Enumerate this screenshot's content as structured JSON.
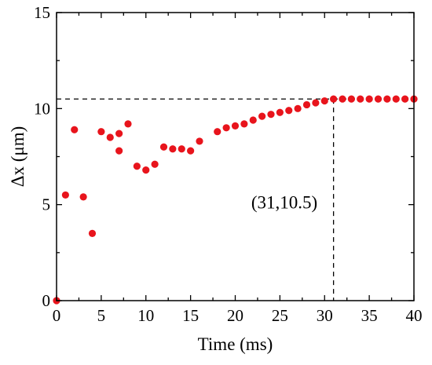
{
  "chart_data": {
    "type": "scatter",
    "xlabel": "Time (ms)",
    "ylabel": "Δx (μm)",
    "xlim": [
      0,
      40
    ],
    "ylim": [
      0,
      15
    ],
    "xticks": [
      0,
      5,
      10,
      15,
      20,
      25,
      30,
      35,
      40
    ],
    "yticks": [
      0,
      5,
      10,
      15
    ],
    "marker_color": "#e8141c",
    "grid": false,
    "series": [
      {
        "points": [
          [
            0,
            0.0
          ],
          [
            1,
            5.5
          ],
          [
            2,
            8.9
          ],
          [
            3,
            5.4
          ],
          [
            4,
            3.5
          ],
          [
            5,
            8.8
          ],
          [
            6,
            8.5
          ],
          [
            7,
            8.7
          ],
          [
            7,
            7.8
          ],
          [
            8,
            9.2
          ],
          [
            9,
            7.0
          ],
          [
            10,
            6.8
          ],
          [
            11,
            7.1
          ],
          [
            12,
            8.0
          ],
          [
            13,
            7.9
          ],
          [
            14,
            7.9
          ],
          [
            15,
            7.8
          ],
          [
            16,
            8.3
          ],
          [
            18,
            8.8
          ],
          [
            19,
            9.0
          ],
          [
            20,
            9.1
          ],
          [
            21,
            9.2
          ],
          [
            22,
            9.4
          ],
          [
            23,
            9.6
          ],
          [
            24,
            9.7
          ],
          [
            25,
            9.8
          ],
          [
            26,
            9.9
          ],
          [
            27,
            10.0
          ],
          [
            28,
            10.2
          ],
          [
            29,
            10.3
          ],
          [
            30,
            10.4
          ],
          [
            31,
            10.5
          ],
          [
            32,
            10.5
          ],
          [
            33,
            10.5
          ],
          [
            34,
            10.5
          ],
          [
            35,
            10.5
          ],
          [
            36,
            10.5
          ],
          [
            37,
            10.5
          ],
          [
            38,
            10.5
          ],
          [
            39,
            10.5
          ],
          [
            40,
            10.5
          ]
        ]
      }
    ],
    "reference_point": {
      "x": 31,
      "y": 10.5
    },
    "annotations": [
      {
        "text": "(31,10.5)",
        "x": 25.5,
        "y": 4.8
      }
    ]
  }
}
